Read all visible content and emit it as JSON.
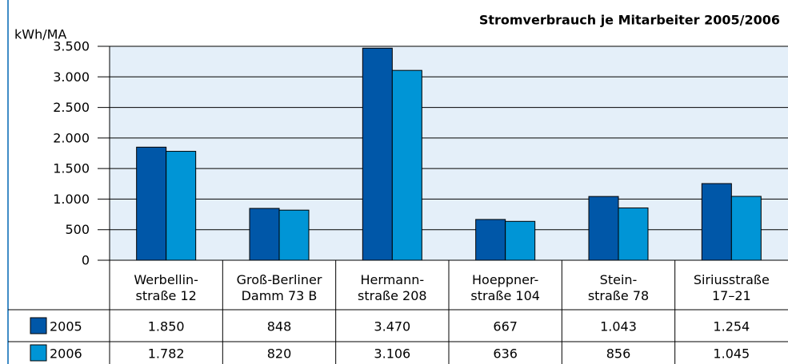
{
  "chart_data": {
    "type": "bar",
    "title": "Stromverbrauch je Mitarbeiter 2005/2006",
    "y_label": "kWh/MA",
    "categories": [
      "Werbellin-\nstraße 12",
      "Groß-Berliner\nDamm 73 B",
      "Hermann-\nstraße 208",
      "Hoeppner-\nstraße 104",
      "Stein-\nstraße 78",
      "Siriusstraße\n17–21"
    ],
    "series": [
      {
        "name": "2005",
        "color": "#0057a8",
        "values": [
          1850,
          848,
          3470,
          667,
          1043,
          1254
        ],
        "value_labels": [
          "1.850",
          "848",
          "3.470",
          "667",
          "1.043",
          "1.254"
        ]
      },
      {
        "name": "2006",
        "color": "#0095d6",
        "values": [
          1782,
          820,
          3106,
          636,
          856,
          1045
        ],
        "value_labels": [
          "1.782",
          "820",
          "3.106",
          "636",
          "856",
          "1.045"
        ]
      }
    ],
    "ylim": [
      0,
      3500
    ],
    "yticks": [
      0,
      500,
      {
        "value": 1000,
        "label": "1.000"
      },
      {
        "value": 1500,
        "label": "1.500"
      },
      {
        "value": 2000,
        "label": "2.000"
      },
      {
        "value": 2500,
        "label": "2.500"
      },
      {
        "value": 3000,
        "label": "3.000"
      },
      {
        "value": 3500,
        "label": "3.500"
      }
    ],
    "grid": true
  }
}
